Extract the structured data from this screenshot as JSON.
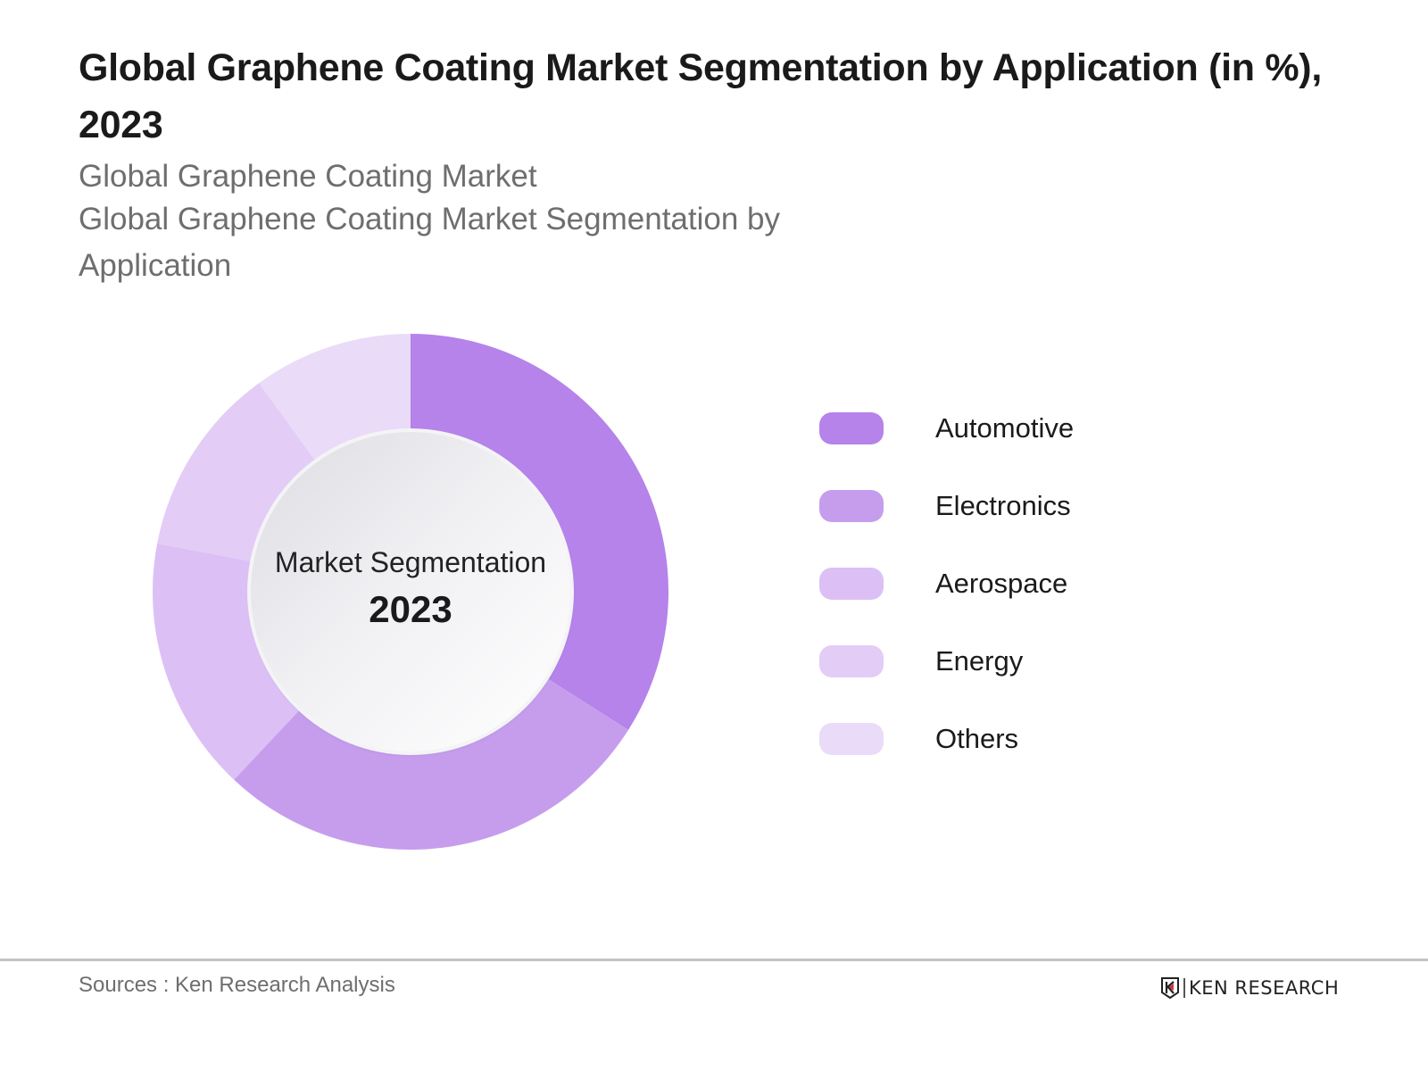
{
  "header": {
    "title": "Global Graphene Coating Market Segmentation by Application  (in %), 2023",
    "subtitle_line1": "Global Graphene Coating Market",
    "subtitle_line2": "Global Graphene Coating Market Segmentation by Application"
  },
  "center": {
    "label": "Market Segmentation",
    "year": "2023"
  },
  "legend": [
    {
      "label": "Automotive",
      "color": "#b583ea"
    },
    {
      "label": "Electronics",
      "color": "#c69ded"
    },
    {
      "label": "Aerospace",
      "color": "#dcc0f5"
    },
    {
      "label": "Energy",
      "color": "#e3ccf6"
    },
    {
      "label": "Others",
      "color": "#eadbf9"
    }
  ],
  "footer": {
    "source": "Sources : Ken Research Analysis",
    "logo_text": "KEN RESEARCH"
  },
  "chart_data": {
    "type": "pie",
    "subtype": "donut",
    "title": "Global Graphene Coating Market Segmentation by Application  (in %), 2023",
    "subtitle": "Global Graphene Coating Market Segmentation by Application",
    "center_text": "Market Segmentation 2023",
    "categories": [
      "Automotive",
      "Electronics",
      "Aerospace",
      "Energy",
      "Others"
    ],
    "values": [
      34,
      28,
      16,
      12,
      10
    ],
    "unit": "%",
    "colors": [
      "#b583ea",
      "#c69ded",
      "#dcc0f5",
      "#e3ccf6",
      "#eadbf9"
    ],
    "start_angle": "12 o'clock, clockwise",
    "legend_position": "right",
    "data_labels": false
  }
}
